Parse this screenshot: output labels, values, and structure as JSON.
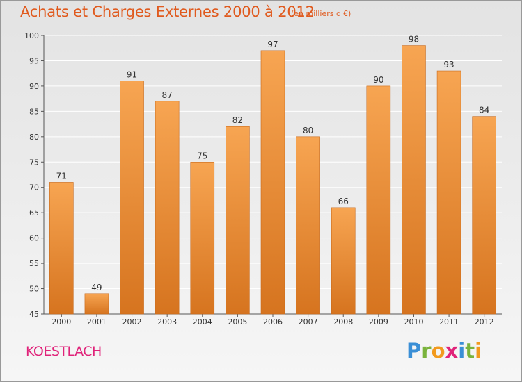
{
  "title": "Achats et Charges Externes 2000 à 2012",
  "subtitle": "(en milliers d'€)",
  "place": "KOESTLACH",
  "logo": {
    "text": "Proxiti",
    "letters": [
      {
        "ch": "P",
        "color": "#3a8fd6"
      },
      {
        "ch": "r",
        "color": "#7ab33c"
      },
      {
        "ch": "o",
        "color": "#f29a1e"
      },
      {
        "ch": "x",
        "color": "#e0237a"
      },
      {
        "ch": "i",
        "color": "#3a8fd6"
      },
      {
        "ch": "t",
        "color": "#7ab33c"
      },
      {
        "ch": "i",
        "color": "#f29a1e"
      }
    ]
  },
  "colors": {
    "bar_top": "#f7a552",
    "bar_bottom": "#d6741f",
    "bar_edge": "#c86a1c",
    "title": "#e05a1e",
    "grid": "#ffffff",
    "axis_text": "#333333"
  },
  "chart_data": {
    "type": "bar",
    "categories": [
      "2000",
      "2001",
      "2002",
      "2003",
      "2004",
      "2005",
      "2006",
      "2007",
      "2008",
      "2009",
      "2010",
      "2011",
      "2012"
    ],
    "values": [
      71,
      49,
      91,
      87,
      75,
      82,
      97,
      80,
      66,
      90,
      98,
      93,
      84
    ],
    "data_labels": [
      "71",
      "49",
      "91",
      "87",
      "75",
      "82",
      "97",
      "80",
      "66",
      "90",
      "98",
      "93",
      "84"
    ],
    "ylim": [
      45,
      100
    ],
    "yticks": [
      45,
      50,
      55,
      60,
      65,
      70,
      75,
      80,
      85,
      90,
      95,
      100
    ],
    "ytick_labels": [
      "45",
      "50",
      "55",
      "60",
      "65",
      "70",
      "75",
      "80",
      "85",
      "90",
      "95",
      "100"
    ],
    "grid": true,
    "legend": "none"
  }
}
